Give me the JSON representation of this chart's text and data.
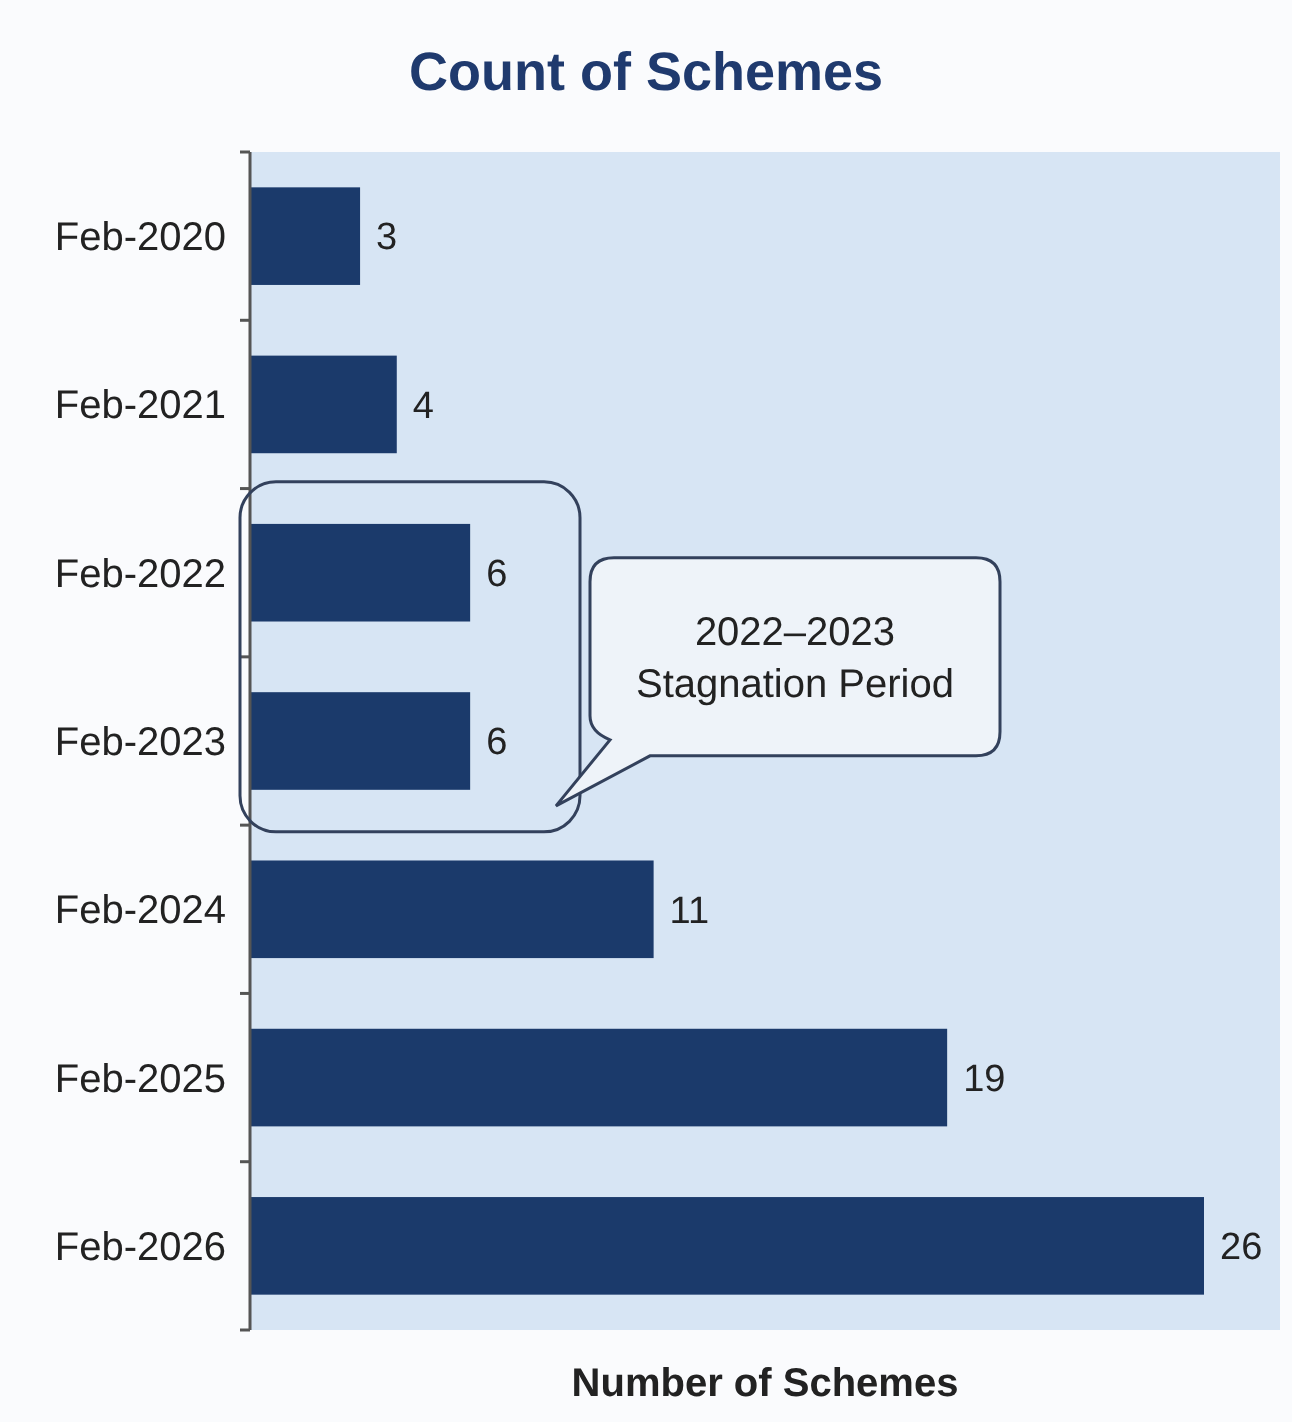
{
  "chart_data": {
    "type": "bar",
    "orientation": "horizontal",
    "title": "Count of Schemes",
    "xlabel": "Number of Schemes",
    "categories": [
      "Feb-2020",
      "Feb-2021",
      "Feb-2022",
      "Feb-2023",
      "Feb-2024",
      "Feb-2025",
      "Feb-2026"
    ],
    "values": [
      3,
      4,
      6,
      6,
      11,
      19,
      26
    ],
    "color": "#1b3a6b",
    "data_labels": true,
    "annotations": [
      "2022–2023\nStagnation Period"
    ]
  }
}
